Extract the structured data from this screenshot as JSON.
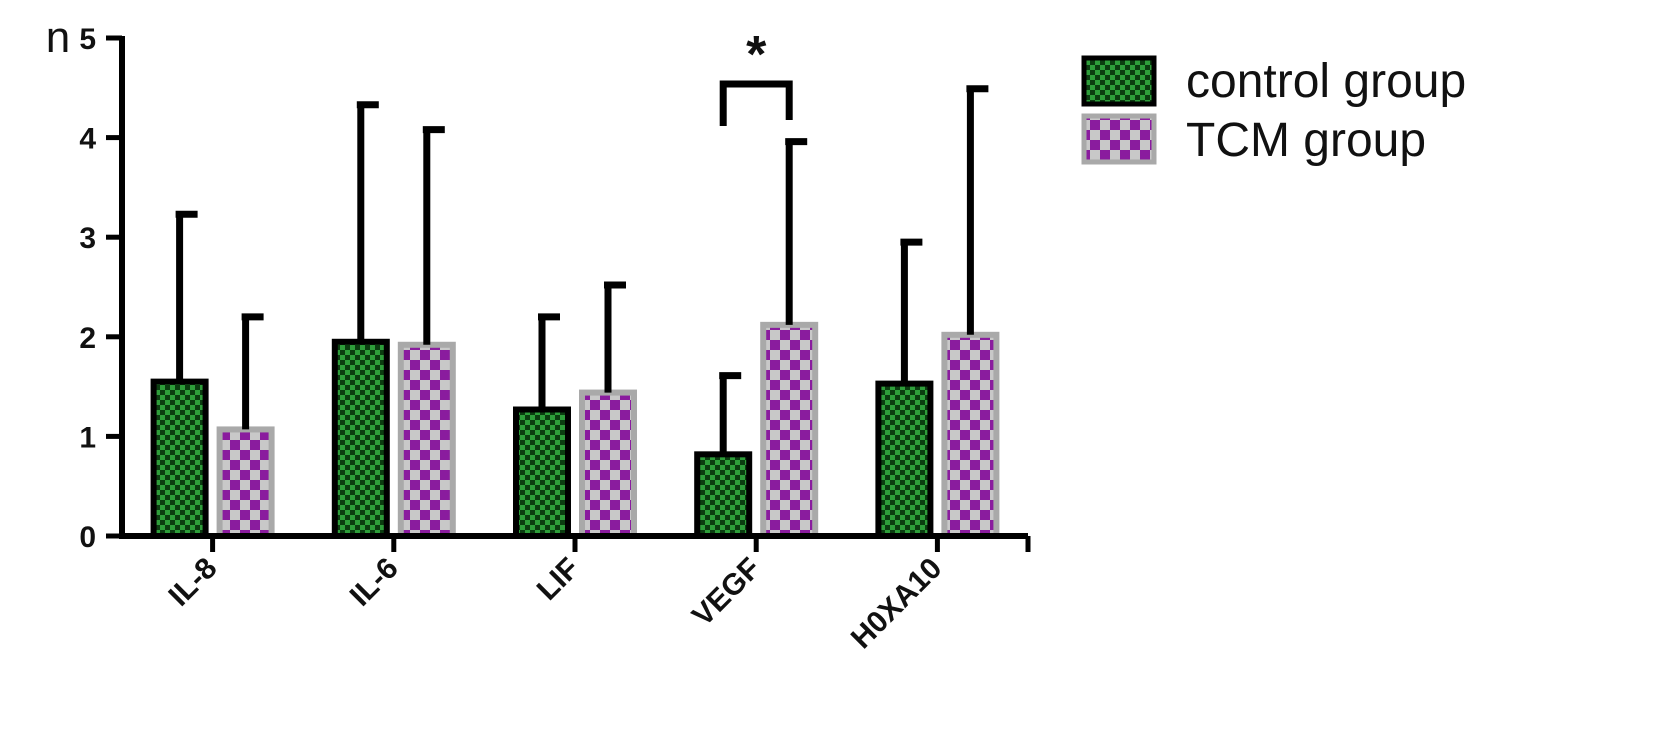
{
  "chart_data": {
    "type": "bar",
    "ylabel": "n",
    "ylim": [
      0,
      5
    ],
    "yticks": [
      0,
      1,
      2,
      3,
      4,
      5
    ],
    "categories": [
      "IL-8",
      "IL-6",
      "LIF",
      "VEGF",
      "H0XA10"
    ],
    "series": [
      {
        "name": "control group",
        "values": [
          1.55,
          1.95,
          1.27,
          0.82,
          1.53
        ],
        "errors": [
          1.68,
          2.38,
          0.93,
          0.79,
          1.42
        ]
      },
      {
        "name": "TCM group",
        "values": [
          1.07,
          1.92,
          1.44,
          2.12,
          2.02
        ],
        "errors": [
          1.13,
          2.16,
          1.08,
          1.84,
          2.47
        ]
      }
    ],
    "annotations": [
      {
        "text": "*",
        "category": "VEGF",
        "type": "significance-bracket"
      }
    ],
    "legend": "top-right",
    "grid": false
  },
  "colors": {
    "control_fill": "#2e9e3a",
    "control_check": "#0b3d10",
    "tcm_fill": "#8a1c9e",
    "tcm_check": "#c8c8c8",
    "tcm_border": "#a9a9a9",
    "axis": "#000000"
  }
}
